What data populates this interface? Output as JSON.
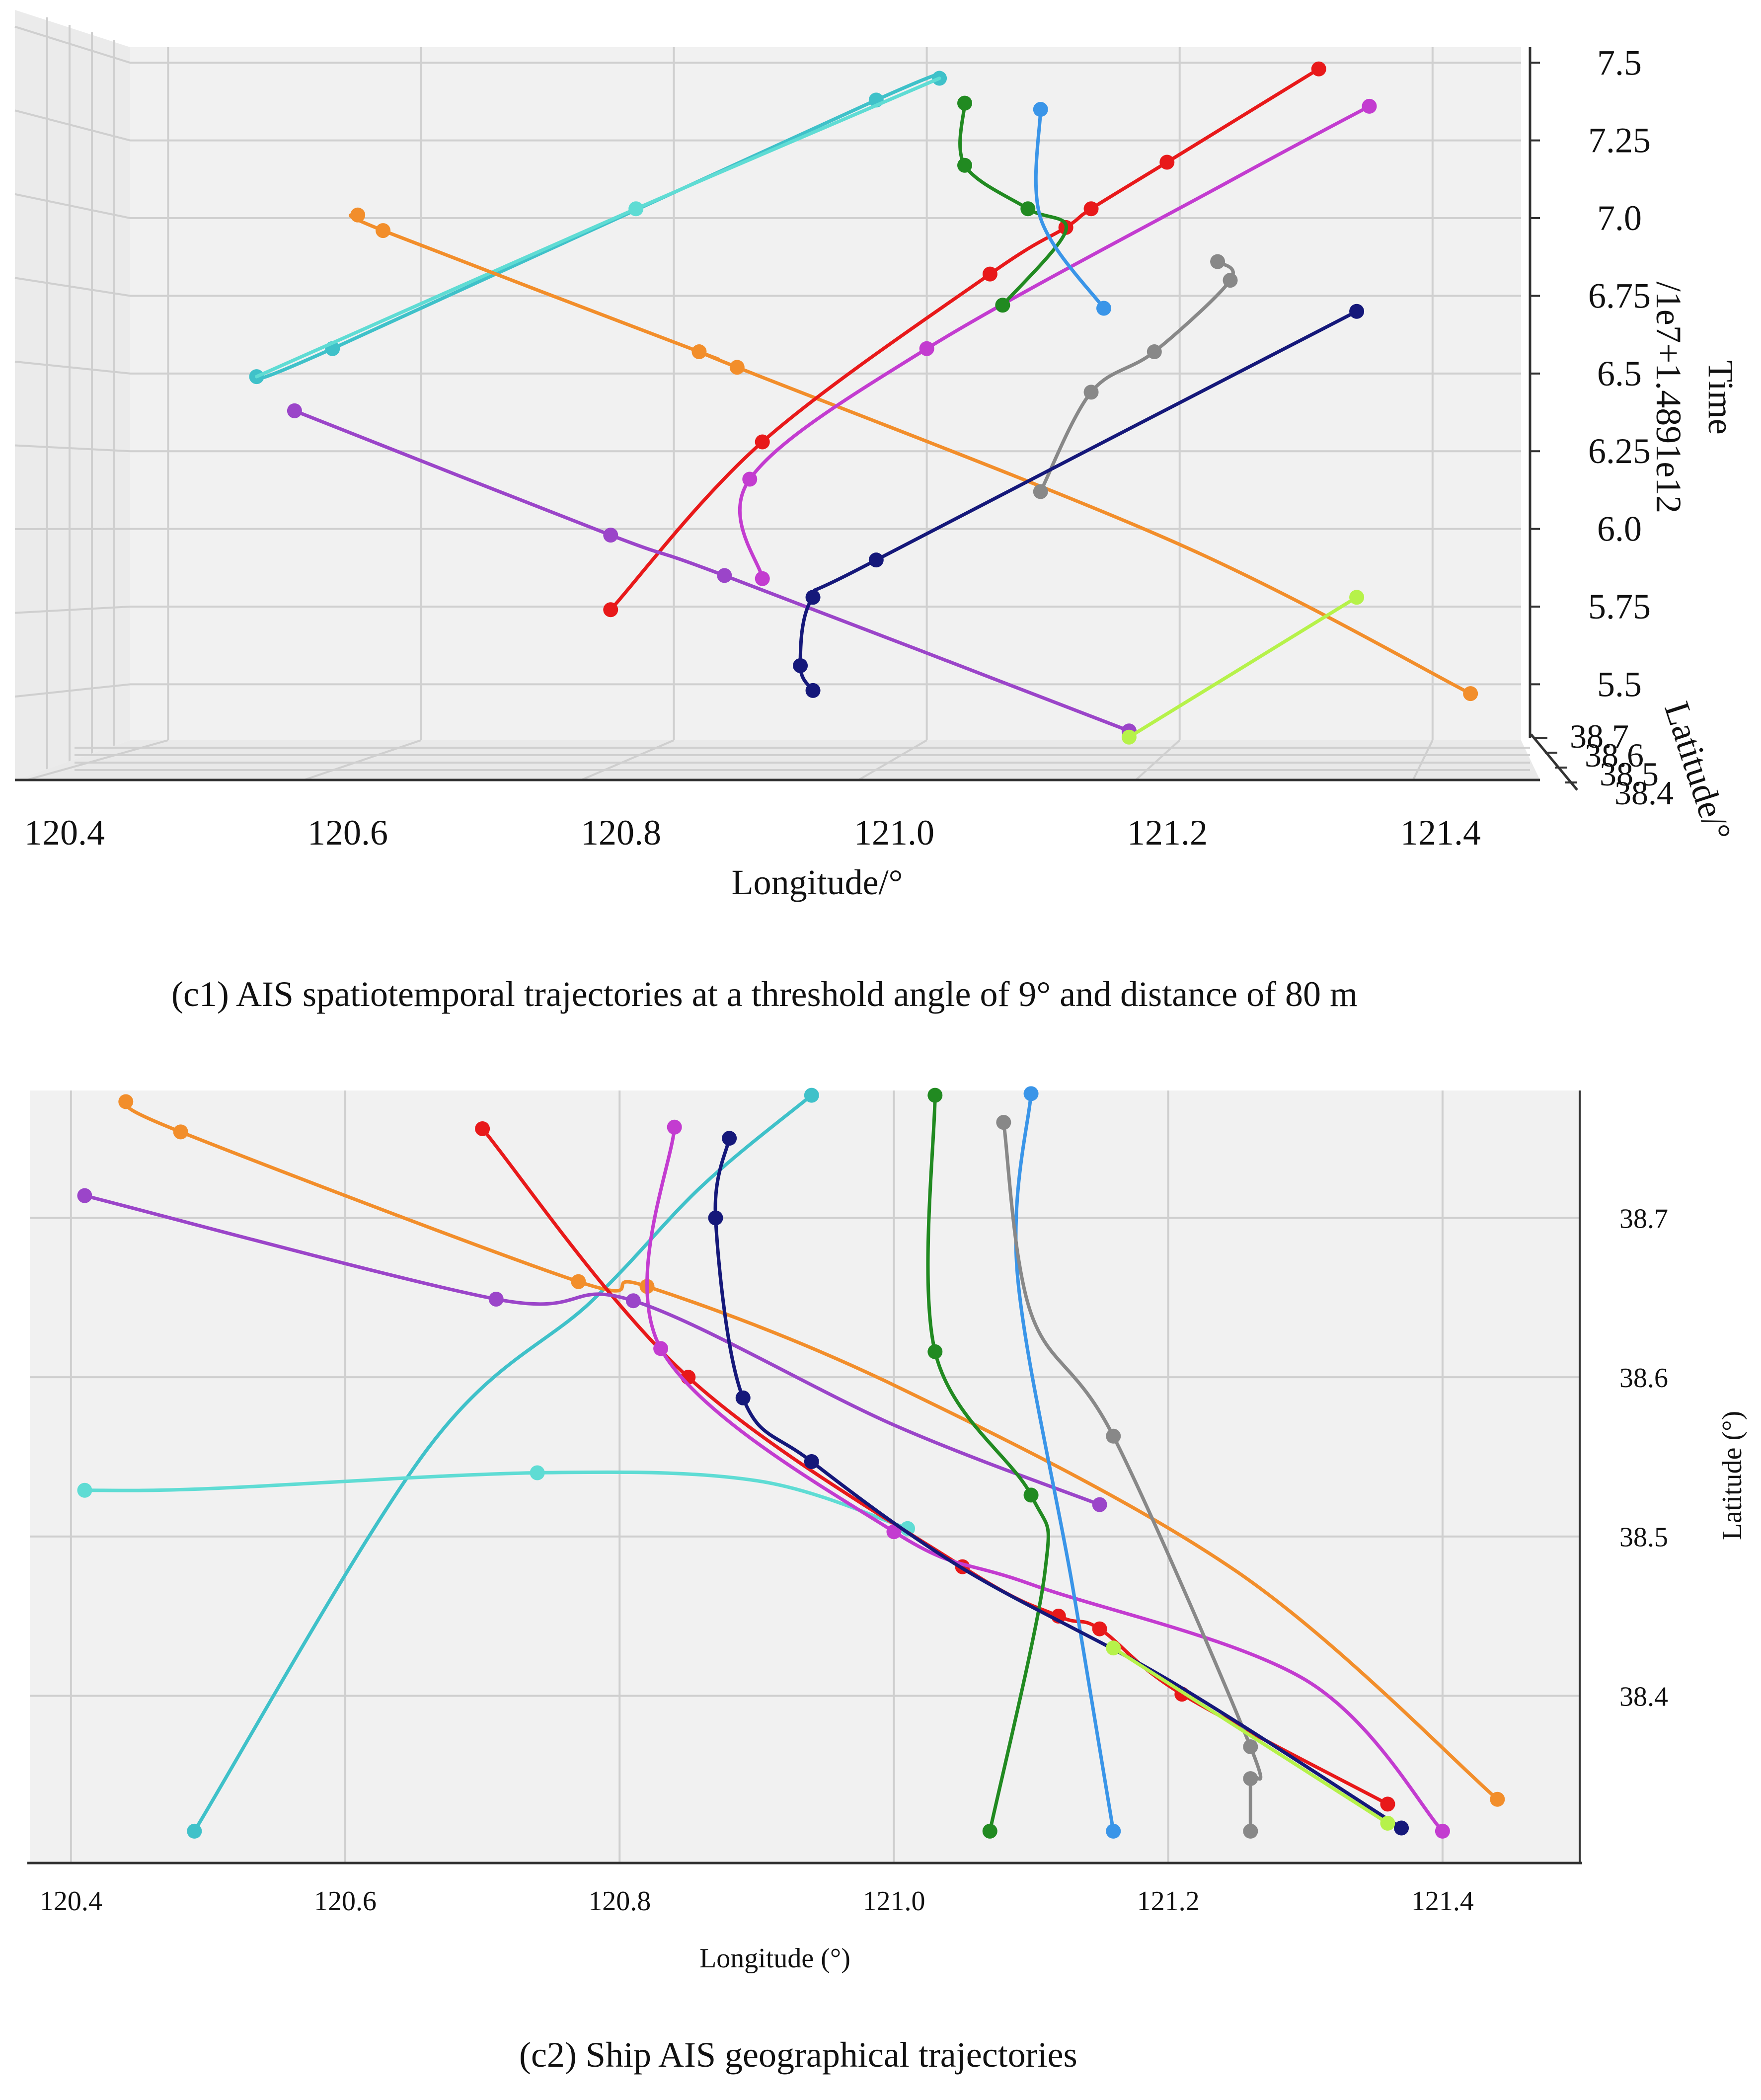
{
  "colors": {
    "cyan": "#3fc1c9",
    "light_cyan": "#5fdcd4",
    "orange": "#f28e2b",
    "red": "#e8191a",
    "magenta": "#c33cd0",
    "purple": "#9b45c9",
    "green": "#218a21",
    "blue": "#3a95e8",
    "gray": "#888888",
    "navy": "#15187a",
    "lime": "#b6f24a"
  },
  "captions": {
    "c1": "(c1) AIS spatiotemporal trajectories at a threshold angle of 9° and distance of 80 m",
    "c2": "(c2) Ship AIS geographical trajectories"
  },
  "chart_data": [
    {
      "type": "line",
      "subtype": "3d-line",
      "title": "",
      "xlabel": "Longitude/°",
      "ylabel": "Time",
      "ylabel_offset": "/1e7+1.4891e12",
      "zlabel": "Latitude/°",
      "xlim": [
        120.37,
        121.47
      ],
      "ylim": [
        5.32,
        7.55
      ],
      "x_ticks": [
        "120.4",
        "120.6",
        "120.8",
        "121.0",
        "121.2",
        "121.4"
      ],
      "y_ticks": [
        "5.5",
        "5.75",
        "6.0",
        "6.25",
        "6.5",
        "6.75",
        "7.0",
        "7.25",
        "7.5"
      ],
      "z_ticks": [
        "38.7",
        "38.6",
        "38.5",
        "38.4"
      ],
      "series": [
        {
          "name": "cyan",
          "color_key": "cyan",
          "x": [
            120.47,
            120.53,
            120.96,
            121.01
          ],
          "y": [
            6.49,
            6.58,
            7.38,
            7.45
          ],
          "markers": [
            0,
            1,
            2,
            3
          ]
        },
        {
          "name": "light cyan",
          "color_key": "light_cyan",
          "x": [
            120.47,
            120.77,
            121.01
          ],
          "y": [
            6.49,
            7.03,
            7.45
          ],
          "markers": [
            1
          ]
        },
        {
          "name": "orange",
          "color_key": "orange",
          "x": [
            120.55,
            120.57,
            120.82,
            120.85,
            121.2,
            121.43
          ],
          "y": [
            7.01,
            6.96,
            6.57,
            6.52,
            5.95,
            5.47
          ],
          "markers": [
            0,
            1,
            2,
            3,
            5
          ]
        },
        {
          "name": "red",
          "color_key": "red",
          "x": [
            120.75,
            120.87,
            121.05,
            121.11,
            121.13,
            121.19,
            121.31
          ],
          "y": [
            5.74,
            6.28,
            6.82,
            6.97,
            7.03,
            7.18,
            7.48
          ],
          "markers": [
            0,
            1,
            2,
            3,
            4,
            5,
            6
          ]
        },
        {
          "name": "magenta",
          "color_key": "magenta",
          "x": [
            120.87,
            120.86,
            121.0,
            121.24,
            121.35
          ],
          "y": [
            5.84,
            6.16,
            6.58,
            7.12,
            7.36
          ],
          "markers": [
            0,
            1,
            2,
            4
          ]
        },
        {
          "name": "purple",
          "color_key": "purple",
          "x": [
            120.5,
            120.75,
            120.84,
            121.16
          ],
          "y": [
            6.38,
            5.98,
            5.85,
            5.35
          ],
          "markers": [
            0,
            1,
            2,
            3
          ]
        },
        {
          "name": "green",
          "color_key": "green",
          "x": [
            121.03,
            121.03,
            121.08,
            121.11,
            121.06
          ],
          "y": [
            7.37,
            7.17,
            7.03,
            6.96,
            6.72
          ],
          "markers": [
            0,
            1,
            2,
            4
          ]
        },
        {
          "name": "blue",
          "color_key": "blue",
          "x": [
            121.09,
            121.09,
            121.14
          ],
          "y": [
            7.35,
            7.0,
            6.71
          ],
          "markers": [
            0,
            2
          ]
        },
        {
          "name": "gray",
          "color_key": "gray",
          "x": [
            121.09,
            121.13,
            121.18,
            121.24,
            121.23
          ],
          "y": [
            6.12,
            6.44,
            6.57,
            6.8,
            6.86
          ],
          "markers": [
            0,
            1,
            2,
            3,
            4
          ]
        },
        {
          "name": "navy",
          "color_key": "navy",
          "x": [
            120.91,
            120.9,
            120.91,
            120.96,
            121.34
          ],
          "y": [
            5.48,
            5.56,
            5.78,
            5.9,
            6.7
          ],
          "markers": [
            0,
            1,
            2,
            3,
            4
          ]
        },
        {
          "name": "lime",
          "color_key": "lime",
          "x": [
            121.16,
            121.34
          ],
          "y": [
            5.33,
            5.78
          ],
          "markers": [
            0,
            1
          ]
        }
      ]
    },
    {
      "type": "line",
      "title": "",
      "xlabel": "Longitude (°)",
      "ylabel": "Latitude (°)",
      "xlim": [
        120.37,
        121.5
      ],
      "ylim": [
        38.295,
        38.78
      ],
      "x_ticks": [
        "120.4",
        "120.6",
        "120.8",
        "121.0",
        "121.2",
        "121.4"
      ],
      "y_ticks": [
        "38.4",
        "38.5",
        "38.6",
        "38.7"
      ],
      "series": [
        {
          "name": "cyan",
          "color_key": "cyan",
          "x": [
            120.49,
            120.66,
            120.78,
            120.86,
            120.94
          ],
          "y": [
            38.315,
            38.555,
            38.648,
            38.72,
            38.777
          ],
          "markers": [
            0,
            4
          ]
        },
        {
          "name": "light cyan",
          "color_key": "light_cyan",
          "x": [
            120.41,
            120.5,
            120.74,
            120.9,
            121.01
          ],
          "y": [
            38.529,
            38.53,
            38.54,
            38.535,
            38.505
          ],
          "markers": [
            0,
            2,
            4
          ]
        },
        {
          "name": "orange",
          "color_key": "orange",
          "x": [
            120.44,
            120.48,
            120.77,
            120.82,
            121.0,
            121.25,
            121.44
          ],
          "y": [
            38.773,
            38.754,
            38.66,
            38.657,
            38.595,
            38.478,
            38.335
          ],
          "markers": [
            0,
            1,
            2,
            3,
            6
          ]
        },
        {
          "name": "red",
          "color_key": "red",
          "x": [
            120.7,
            120.85,
            121.05,
            121.12,
            121.15,
            121.21,
            121.36
          ],
          "y": [
            38.756,
            38.6,
            38.481,
            38.45,
            38.442,
            38.401,
            38.332
          ],
          "markers": [
            0,
            1,
            2,
            3,
            4,
            5,
            6
          ]
        },
        {
          "name": "magenta",
          "color_key": "magenta",
          "x": [
            120.84,
            120.83,
            121.0,
            121.1,
            121.3,
            121.4
          ],
          "y": [
            38.757,
            38.618,
            38.503,
            38.47,
            38.41,
            38.315
          ],
          "markers": [
            0,
            1,
            2,
            5
          ]
        },
        {
          "name": "purple",
          "color_key": "purple",
          "x": [
            120.41,
            120.71,
            120.81,
            121.0,
            121.15
          ],
          "y": [
            38.714,
            38.649,
            38.648,
            38.57,
            38.52
          ],
          "markers": [
            0,
            1,
            2,
            4
          ]
        },
        {
          "name": "green",
          "color_key": "green",
          "x": [
            121.03,
            121.03,
            121.1,
            121.11,
            121.07
          ],
          "y": [
            38.777,
            38.616,
            38.526,
            38.477,
            38.315
          ],
          "markers": [
            0,
            1,
            2,
            4
          ]
        },
        {
          "name": "blue",
          "color_key": "blue",
          "x": [
            121.1,
            121.09,
            121.13,
            121.16
          ],
          "y": [
            38.778,
            38.665,
            38.47,
            38.315
          ],
          "markers": [
            0,
            3
          ]
        },
        {
          "name": "gray",
          "color_key": "gray",
          "x": [
            121.08,
            121.1,
            121.16,
            121.26,
            121.26,
            121.26
          ],
          "y": [
            38.76,
            38.64,
            38.563,
            38.368,
            38.348,
            38.315
          ],
          "markers": [
            0,
            2,
            3,
            4,
            5
          ]
        },
        {
          "name": "navy",
          "color_key": "navy",
          "x": [
            120.88,
            120.87,
            120.89,
            120.94,
            121.05,
            121.2,
            121.37
          ],
          "y": [
            38.75,
            38.7,
            38.587,
            38.547,
            38.48,
            38.41,
            38.317
          ],
          "markers": [
            0,
            1,
            2,
            3,
            6
          ]
        },
        {
          "name": "lime",
          "color_key": "lime",
          "x": [
            121.16,
            121.36
          ],
          "y": [
            38.43,
            38.32
          ],
          "markers": [
            0,
            1
          ]
        }
      ]
    }
  ]
}
